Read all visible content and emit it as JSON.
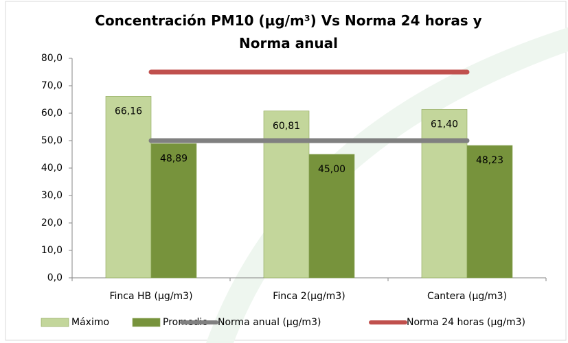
{
  "chart_data": {
    "type": "bar",
    "title": "Concentración PM10 (µg/m³) Vs Norma 24 horas y Norma anual",
    "categories": [
      "Finca HB (µg/m3)",
      "Finca 2(µg/m3)",
      "Cantera (µg/m3)"
    ],
    "series": [
      {
        "name": "Máximo",
        "type": "bar",
        "color": "#c3d69b",
        "values": [
          66.16,
          60.81,
          61.4
        ],
        "value_labels": [
          "66,16",
          "60,81",
          "61,40"
        ]
      },
      {
        "name": "Promedio",
        "type": "bar",
        "color": "#77933c",
        "values": [
          48.89,
          45.0,
          48.23
        ],
        "value_labels": [
          "48,89",
          "45,00",
          "48,23"
        ]
      },
      {
        "name": "Norma anual (µg/m3)",
        "type": "line",
        "color": "#808080",
        "values": [
          50,
          50,
          50
        ]
      },
      {
        "name": "Norma 24 horas (µg/m3)",
        "type": "line",
        "color": "#c0504d",
        "values": [
          75,
          75,
          75
        ]
      }
    ],
    "ylim": [
      0,
      80
    ],
    "yticks": [
      {
        "value": 0,
        "label": "0,0"
      },
      {
        "value": 10,
        "label": "10,0"
      },
      {
        "value": 20,
        "label": "20,0"
      },
      {
        "value": 30,
        "label": "30,0"
      },
      {
        "value": 40,
        "label": "40,0"
      },
      {
        "value": 50,
        "label": "50,0"
      },
      {
        "value": 60,
        "label": "60,0"
      },
      {
        "value": 70,
        "label": "70,0"
      },
      {
        "value": 80,
        "label": "80,0"
      }
    ],
    "grid": false
  }
}
